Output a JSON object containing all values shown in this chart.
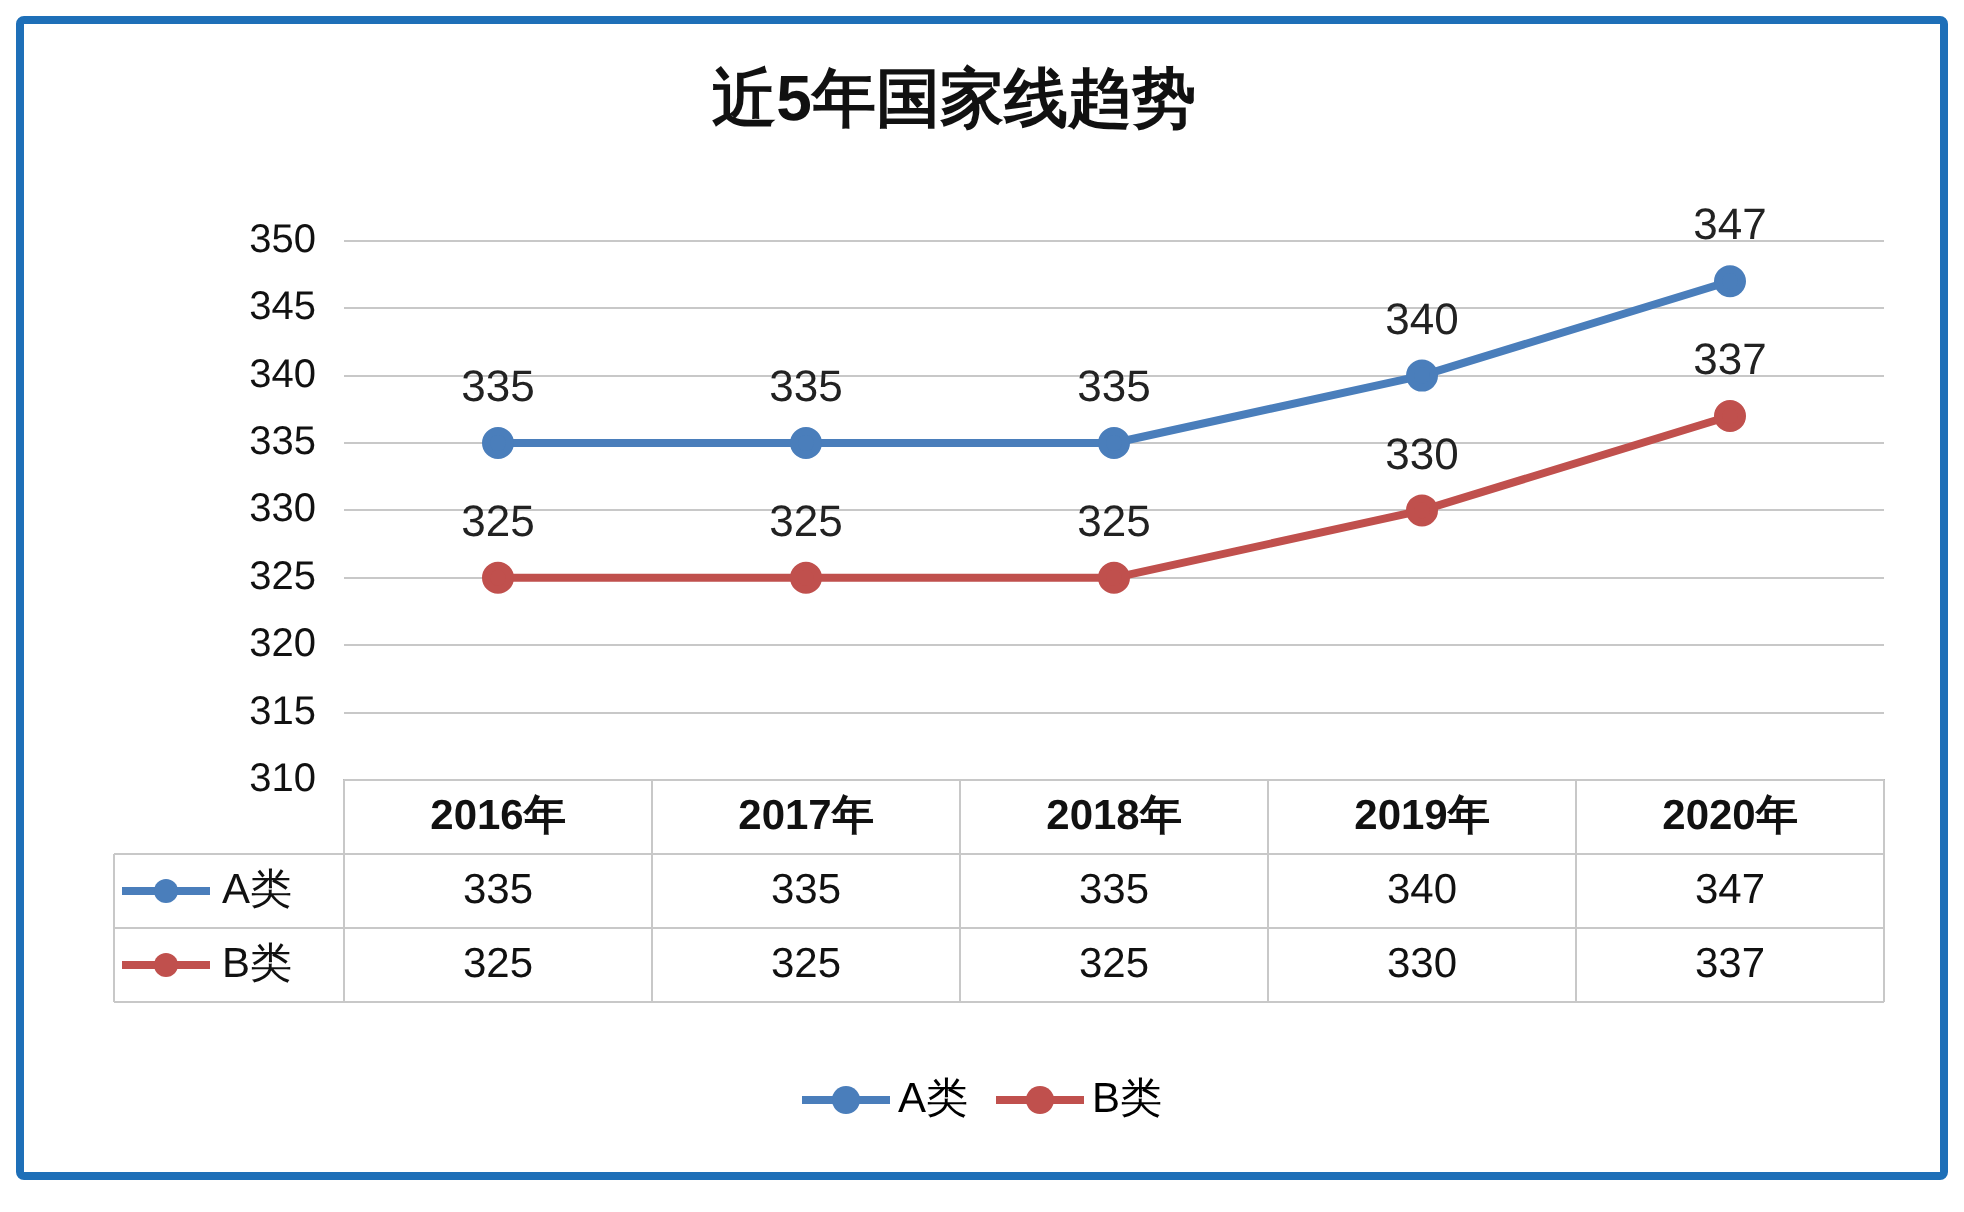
{
  "chart_data": {
    "type": "line",
    "title": "近5年国家线趋势",
    "categories": [
      "2016年",
      "2017年",
      "2018年",
      "2019年",
      "2020年"
    ],
    "series": [
      {
        "name": "A类",
        "color": "#4a7ebb",
        "values": [
          335,
          335,
          335,
          340,
          347
        ]
      },
      {
        "name": "B类",
        "color": "#c0504d",
        "values": [
          325,
          325,
          325,
          330,
          337
        ]
      }
    ],
    "annotations": [
      {
        "text": "335",
        "x": "2016年",
        "y": 335
      },
      {
        "text": "335",
        "x": "2017年",
        "y": 335
      },
      {
        "text": "335",
        "x": "2018年",
        "y": 335
      },
      {
        "text": "340",
        "x": "2019年",
        "y": 340
      },
      {
        "text": "347",
        "x": "2020年",
        "y": 347
      },
      {
        "text": "325",
        "x": "2016年",
        "y": 325
      },
      {
        "text": "325",
        "x": "2017年",
        "y": 325
      },
      {
        "text": "325",
        "x": "2018年",
        "y": 325
      },
      {
        "text": "330",
        "x": "2019年",
        "y": 330
      },
      {
        "text": "337",
        "x": "2020年",
        "y": 337
      }
    ],
    "ylim": [
      310,
      350
    ],
    "yticks": [
      310,
      315,
      320,
      325,
      330,
      335,
      340,
      345,
      350
    ],
    "grid": "y",
    "legend": "bottom",
    "marker": "circle",
    "line_style": "solid",
    "data_labels": true
  }
}
